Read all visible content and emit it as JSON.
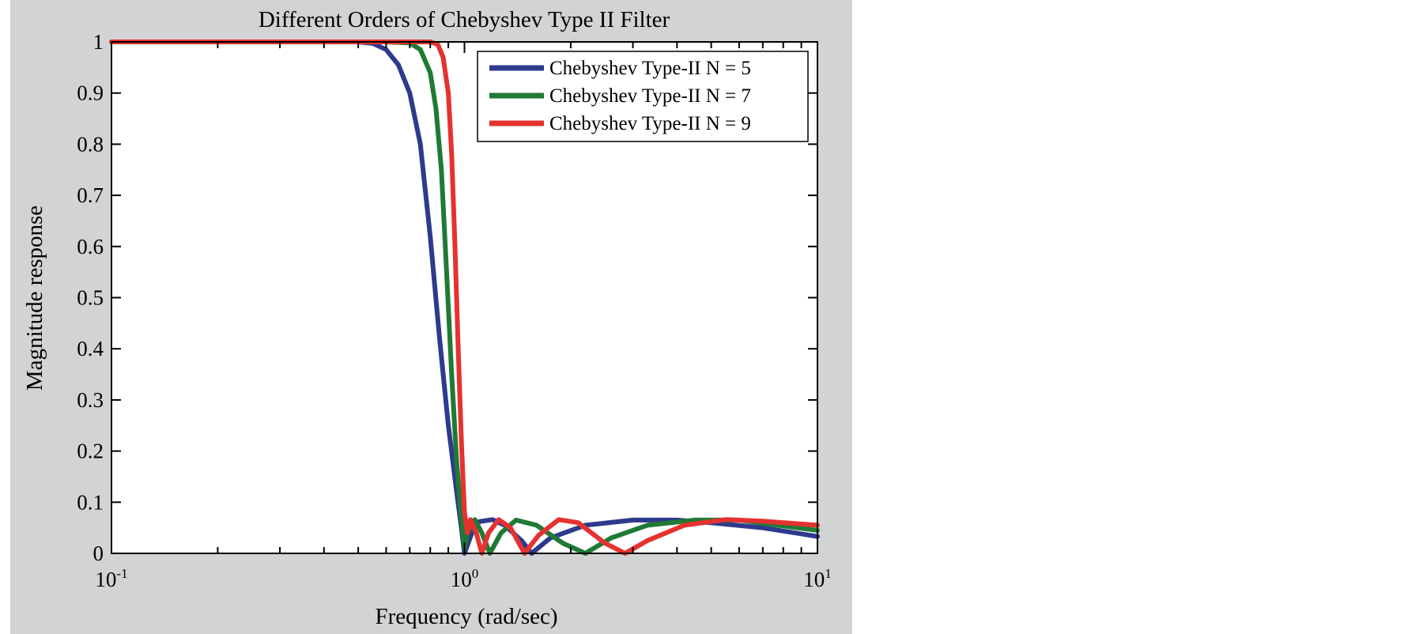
{
  "chart_data": {
    "type": "line",
    "title": "Different Orders of Chebyshev Type II Filter",
    "xlabel": "Frequency (rad/sec)",
    "ylabel": "Magnitude response",
    "xscale": "log",
    "xlim": [
      0.1,
      10
    ],
    "ylim": [
      0,
      1
    ],
    "x_ticks": [
      {
        "value": 0.1,
        "base": "10",
        "exp": "-1"
      },
      {
        "value": 1,
        "base": "10",
        "exp": "0"
      },
      {
        "value": 10,
        "base": "10",
        "exp": "1"
      }
    ],
    "y_ticks": [
      "0",
      "0.1",
      "0.2",
      "0.3",
      "0.4",
      "0.5",
      "0.6",
      "0.7",
      "0.8",
      "0.9",
      "1"
    ],
    "grid": false,
    "legend_position": "top-right",
    "background_color": "#d2d3d5",
    "series": [
      {
        "name": "Chebyshev Type-II N = 5",
        "color": "#2e3a8c",
        "points": [
          [
            0.1,
            1
          ],
          [
            0.5,
            1
          ],
          [
            0.55,
            0.997
          ],
          [
            0.6,
            0.985
          ],
          [
            0.65,
            0.955
          ],
          [
            0.7,
            0.9
          ],
          [
            0.75,
            0.8
          ],
          [
            0.8,
            0.62
          ],
          [
            0.85,
            0.42
          ],
          [
            0.9,
            0.25
          ],
          [
            0.95,
            0.12
          ],
          [
            0.98,
            0.05
          ],
          [
            1.0,
            0.0
          ],
          [
            1.05,
            0.04
          ],
          [
            1.1,
            0.062
          ],
          [
            1.2,
            0.066
          ],
          [
            1.3,
            0.055
          ],
          [
            1.45,
            0.025
          ],
          [
            1.55,
            0.0
          ],
          [
            1.75,
            0.03
          ],
          [
            2.2,
            0.055
          ],
          [
            3,
            0.065
          ],
          [
            4,
            0.065
          ],
          [
            5,
            0.06
          ],
          [
            7,
            0.05
          ],
          [
            10,
            0.033
          ]
        ]
      },
      {
        "name": "Chebyshev Type-II N = 7",
        "color": "#1f7a34",
        "points": [
          [
            0.1,
            1
          ],
          [
            0.6,
            1
          ],
          [
            0.7,
            0.998
          ],
          [
            0.75,
            0.985
          ],
          [
            0.8,
            0.94
          ],
          [
            0.83,
            0.87
          ],
          [
            0.86,
            0.75
          ],
          [
            0.89,
            0.55
          ],
          [
            0.92,
            0.35
          ],
          [
            0.95,
            0.18
          ],
          [
            0.98,
            0.07
          ],
          [
            1.0,
            0.01
          ],
          [
            1.02,
            0.04
          ],
          [
            1.07,
            0.066
          ],
          [
            1.12,
            0.04
          ],
          [
            1.18,
            0.0
          ],
          [
            1.27,
            0.04
          ],
          [
            1.4,
            0.065
          ],
          [
            1.6,
            0.055
          ],
          [
            1.9,
            0.02
          ],
          [
            2.2,
            0.0
          ],
          [
            2.6,
            0.03
          ],
          [
            3.3,
            0.055
          ],
          [
            4.5,
            0.065
          ],
          [
            6,
            0.065
          ],
          [
            10,
            0.045
          ]
        ]
      },
      {
        "name": "Chebyshev Type-II N = 9",
        "color": "#e53230",
        "points": [
          [
            0.1,
            1
          ],
          [
            0.8,
            1
          ],
          [
            0.84,
            0.995
          ],
          [
            0.87,
            0.97
          ],
          [
            0.9,
            0.9
          ],
          [
            0.92,
            0.78
          ],
          [
            0.94,
            0.6
          ],
          [
            0.96,
            0.4
          ],
          [
            0.98,
            0.22
          ],
          [
            1.0,
            0.08
          ],
          [
            1.02,
            0.04
          ],
          [
            1.04,
            0.066
          ],
          [
            1.08,
            0.04
          ],
          [
            1.12,
            0.0
          ],
          [
            1.17,
            0.04
          ],
          [
            1.25,
            0.066
          ],
          [
            1.35,
            0.05
          ],
          [
            1.48,
            0.0
          ],
          [
            1.62,
            0.035
          ],
          [
            1.85,
            0.066
          ],
          [
            2.1,
            0.06
          ],
          [
            2.5,
            0.02
          ],
          [
            2.85,
            0.0
          ],
          [
            3.3,
            0.025
          ],
          [
            4.2,
            0.055
          ],
          [
            5.5,
            0.066
          ],
          [
            7,
            0.063
          ],
          [
            10,
            0.055
          ]
        ]
      }
    ]
  }
}
